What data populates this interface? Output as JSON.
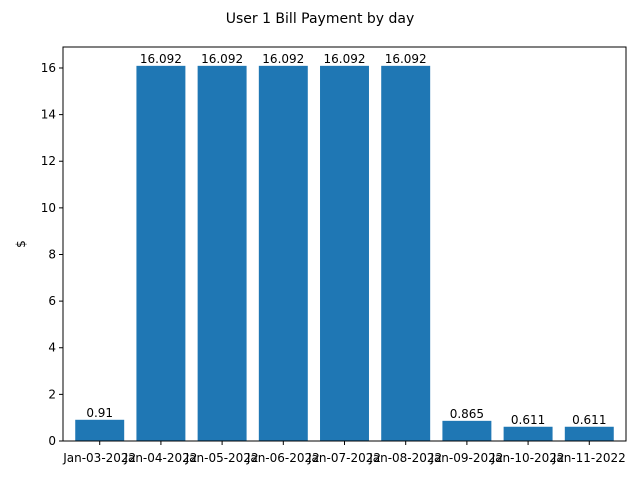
{
  "chart_data": {
    "type": "bar",
    "title": "User 1 Bill Payment by day",
    "xlabel": "",
    "ylabel": "$",
    "categories": [
      "Jan-03-2022",
      "Jan-04-2022",
      "Jan-05-2022",
      "Jan-06-2022",
      "Jan-07-2022",
      "Jan-08-2022",
      "Jan-09-2022",
      "Jan-10-2022",
      "Jan-11-2022"
    ],
    "values": [
      0.91,
      16.092,
      16.092,
      16.092,
      16.092,
      16.092,
      0.865,
      0.611,
      0.611
    ],
    "data_labels": [
      "0.91",
      "16.092",
      "16.092",
      "16.092",
      "16.092",
      "16.092",
      "0.865",
      "0.611",
      "0.611"
    ],
    "ylim": [
      0,
      16.9
    ],
    "yticks": [
      0,
      2,
      4,
      6,
      8,
      10,
      12,
      14,
      16
    ],
    "grid": false,
    "bar_color": "#1f77b4"
  }
}
